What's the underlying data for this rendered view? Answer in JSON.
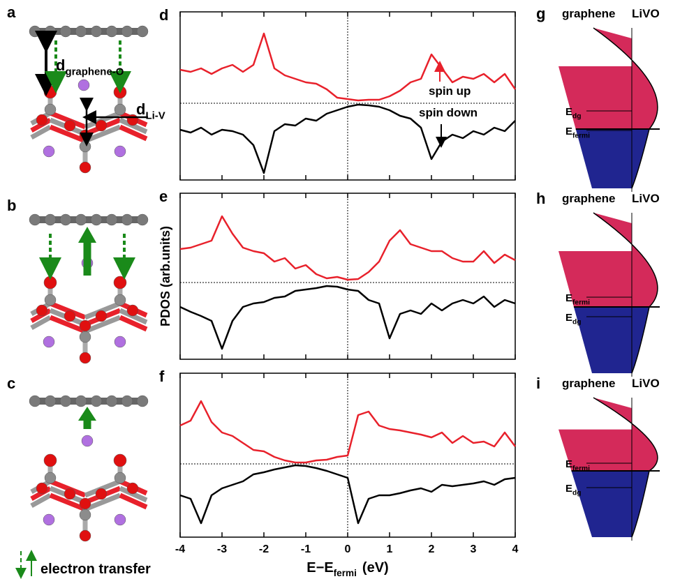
{
  "structures": {
    "panels": [
      {
        "label": "a"
      },
      {
        "label": "b"
      },
      {
        "label": "c"
      }
    ],
    "d_graphene_o": {
      "main": "d",
      "sub": "graphene-O"
    },
    "d_li_v": {
      "main": "d",
      "sub": "Li-V"
    },
    "legend": "electron transfer"
  },
  "bands": {
    "panels": [
      {
        "label": "g",
        "left": "graphene",
        "right": "LiVO",
        "levels": [
          {
            "main": "E",
            "sub": "dg"
          },
          {
            "main": "E",
            "sub": "fermi"
          }
        ]
      },
      {
        "label": "h",
        "left": "graphene",
        "right": "LiVO",
        "levels": [
          {
            "main": "E",
            "sub": "fermi"
          },
          {
            "main": "E",
            "sub": "dg"
          }
        ]
      },
      {
        "label": "i",
        "left": "graphene",
        "right": "LiVO",
        "levels": [
          {
            "main": "E",
            "sub": "fermi"
          },
          {
            "main": "E",
            "sub": "dg"
          }
        ]
      }
    ]
  },
  "chart_data": [
    {
      "type": "line",
      "label": "d",
      "xlim": [
        -4,
        4
      ],
      "ylim": [
        -1.1,
        1.31
      ],
      "annotations": [
        "spin up",
        "spin down"
      ],
      "x": [
        -4,
        -3.75,
        -3.5,
        -3.25,
        -3,
        -2.75,
        -2.5,
        -2.25,
        -2,
        -1.75,
        -1.5,
        -1.25,
        -1,
        -0.75,
        -0.5,
        -0.25,
        0,
        0.25,
        0.5,
        0.75,
        1,
        1.25,
        1.5,
        1.75,
        2,
        2.25,
        2.5,
        2.75,
        3,
        3.25,
        3.5,
        3.75,
        4
      ],
      "series": [
        {
          "color": "#e8212b",
          "values": [
            0.48,
            0.45,
            0.5,
            0.42,
            0.5,
            0.55,
            0.45,
            0.55,
            1.0,
            0.5,
            0.4,
            0.35,
            0.3,
            0.28,
            0.2,
            0.08,
            0.06,
            0.04,
            0.05,
            0.05,
            0.1,
            0.18,
            0.3,
            0.35,
            0.7,
            0.5,
            0.3,
            0.38,
            0.35,
            0.42,
            0.3,
            0.42,
            0.2
          ]
        },
        {
          "color": "#000000",
          "values": [
            -0.38,
            -0.42,
            -0.35,
            -0.45,
            -0.38,
            -0.4,
            -0.45,
            -0.6,
            -1.0,
            -0.4,
            -0.3,
            -0.32,
            -0.22,
            -0.25,
            -0.15,
            -0.1,
            -0.05,
            -0.02,
            -0.03,
            -0.05,
            -0.1,
            -0.18,
            -0.22,
            -0.35,
            -0.8,
            -0.55,
            -0.45,
            -0.5,
            -0.4,
            -0.45,
            -0.35,
            -0.4,
            -0.25
          ]
        }
      ]
    },
    {
      "type": "line",
      "label": "e",
      "ylabel": "PDOS (arb.units)",
      "xlim": [
        -4,
        4
      ],
      "ylim": [
        -1.1,
        1.28
      ],
      "x": [
        -4,
        -3.75,
        -3.5,
        -3.25,
        -3,
        -2.75,
        -2.5,
        -2.25,
        -2,
        -1.75,
        -1.5,
        -1.25,
        -1,
        -0.75,
        -0.5,
        -0.25,
        0,
        0.25,
        0.5,
        0.75,
        1,
        1.25,
        1.5,
        1.75,
        2,
        2.25,
        2.5,
        2.75,
        3,
        3.25,
        3.5,
        3.75,
        4
      ],
      "series": [
        {
          "color": "#e8212b",
          "values": [
            0.48,
            0.5,
            0.55,
            0.6,
            0.95,
            0.7,
            0.5,
            0.45,
            0.42,
            0.3,
            0.35,
            0.2,
            0.25,
            0.12,
            0.06,
            0.08,
            0.04,
            0.05,
            0.15,
            0.3,
            0.6,
            0.75,
            0.55,
            0.5,
            0.45,
            0.45,
            0.35,
            0.3,
            0.3,
            0.45,
            0.28,
            0.4,
            0.32
          ]
        },
        {
          "color": "#000000",
          "values": [
            -0.35,
            -0.42,
            -0.48,
            -0.55,
            -0.95,
            -0.55,
            -0.35,
            -0.3,
            -0.28,
            -0.22,
            -0.2,
            -0.12,
            -0.1,
            -0.08,
            -0.05,
            -0.06,
            -0.1,
            -0.12,
            -0.25,
            -0.3,
            -0.8,
            -0.45,
            -0.4,
            -0.45,
            -0.3,
            -0.4,
            -0.3,
            -0.25,
            -0.3,
            -0.2,
            -0.35,
            -0.25,
            -0.3
          ]
        }
      ]
    },
    {
      "type": "line",
      "label": "f",
      "xlabel": {
        "main": "E−E",
        "sub": "fermi",
        "tail": "(eV)"
      },
      "xlim": [
        -4,
        4
      ],
      "ylim": [
        -1.05,
        1.3
      ],
      "xticks": [
        -4,
        -3,
        -2,
        -1,
        0,
        1,
        2,
        3,
        4
      ],
      "x": [
        -4,
        -3.75,
        -3.5,
        -3.25,
        -3,
        -2.75,
        -2.5,
        -2.25,
        -2,
        -1.75,
        -1.5,
        -1.25,
        -1,
        -0.75,
        -0.5,
        -0.25,
        0,
        0.25,
        0.5,
        0.75,
        1,
        1.25,
        1.5,
        1.75,
        2,
        2.25,
        2.5,
        2.75,
        3,
        3.25,
        3.5,
        3.75,
        4
      ],
      "series": [
        {
          "color": "#e8212b",
          "values": [
            0.55,
            0.62,
            0.9,
            0.6,
            0.45,
            0.4,
            0.3,
            0.2,
            0.18,
            0.1,
            0.05,
            0.02,
            0.02,
            0.05,
            0.06,
            0.1,
            0.12,
            0.7,
            0.75,
            0.55,
            0.5,
            0.48,
            0.45,
            0.42,
            0.38,
            0.45,
            0.3,
            0.4,
            0.3,
            0.32,
            0.25,
            0.45,
            0.25
          ]
        },
        {
          "color": "#000000",
          "values": [
            -0.45,
            -0.5,
            -0.85,
            -0.45,
            -0.35,
            -0.3,
            -0.25,
            -0.15,
            -0.12,
            -0.08,
            -0.05,
            -0.02,
            -0.03,
            -0.06,
            -0.1,
            -0.15,
            -0.2,
            -0.85,
            -0.5,
            -0.45,
            -0.45,
            -0.42,
            -0.38,
            -0.35,
            -0.4,
            -0.3,
            -0.32,
            -0.3,
            -0.28,
            -0.25,
            -0.3,
            -0.22,
            -0.2
          ]
        }
      ]
    }
  ]
}
